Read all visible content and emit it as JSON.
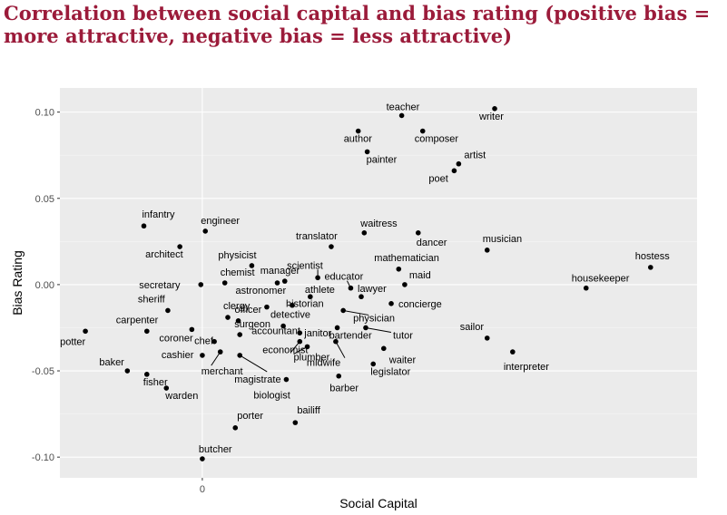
{
  "chart_data": {
    "type": "scatter",
    "title": "Correlation between social capital and bias rating (positive bias = more attractive, negative bias = less attractive)",
    "xlabel": "Social Capital",
    "ylabel": "Bias Rating",
    "x_ticks": [
      0
    ],
    "y_ticks": [
      0.1,
      0.05,
      0.0,
      -0.05,
      -0.1
    ],
    "y_tick_labels": [
      "0.10",
      "0.05",
      "0.00",
      "-0.05",
      "-0.10"
    ],
    "x_tick_labels": [
      "0"
    ],
    "xlim": [
      -0.95,
      3.3
    ],
    "ylim": [
      -0.112,
      0.114
    ],
    "grid": true,
    "points": [
      {
        "label": "teacher",
        "x": 1.33,
        "y": 0.098
      },
      {
        "label": "writer",
        "x": 1.95,
        "y": 0.102
      },
      {
        "label": "author",
        "x": 1.04,
        "y": 0.089
      },
      {
        "label": "composer",
        "x": 1.47,
        "y": 0.089
      },
      {
        "label": "painter",
        "x": 1.1,
        "y": 0.077
      },
      {
        "label": "artist",
        "x": 1.71,
        "y": 0.07
      },
      {
        "label": "poet",
        "x": 1.68,
        "y": 0.066
      },
      {
        "label": "infantry",
        "x": -0.39,
        "y": 0.034
      },
      {
        "label": "engineer",
        "x": 0.02,
        "y": 0.031
      },
      {
        "label": "architect",
        "x": -0.15,
        "y": 0.022
      },
      {
        "label": "waitress",
        "x": 1.08,
        "y": 0.03
      },
      {
        "label": "dancer",
        "x": 1.44,
        "y": 0.03
      },
      {
        "label": "translator",
        "x": 0.86,
        "y": 0.022
      },
      {
        "label": "musician",
        "x": 1.9,
        "y": 0.02
      },
      {
        "label": "hostess",
        "x": 2.99,
        "y": 0.01
      },
      {
        "label": "physicist",
        "x": 0.33,
        "y": 0.011
      },
      {
        "label": "scientist",
        "x": 0.77,
        "y": 0.004
      },
      {
        "label": "mathematician",
        "x": 1.31,
        "y": 0.009
      },
      {
        "label": "chemist",
        "x": 0.15,
        "y": 0.001
      },
      {
        "label": "manager",
        "x": 0.55,
        "y": 0.002
      },
      {
        "label": "educator",
        "x": 0.99,
        "y": -0.002
      },
      {
        "label": "maid",
        "x": 1.35,
        "y": 0.0
      },
      {
        "label": "housekeeper",
        "x": 2.56,
        "y": -0.002
      },
      {
        "label": "secretary",
        "x": -0.01,
        "y": 0.0
      },
      {
        "label": "astronomer",
        "x": 0.5,
        "y": 0.001
      },
      {
        "label": "athlete",
        "x": 0.72,
        "y": -0.007
      },
      {
        "label": "lawyer",
        "x": 1.06,
        "y": -0.007
      },
      {
        "label": "sheriff",
        "x": -0.23,
        "y": -0.015
      },
      {
        "label": "clergy",
        "x": 0.17,
        "y": -0.019
      },
      {
        "label": "officer",
        "x": 0.24,
        "y": -0.021
      },
      {
        "label": "historian",
        "x": 0.6,
        "y": -0.012
      },
      {
        "label": "concierge",
        "x": 1.26,
        "y": -0.011
      },
      {
        "label": "detective",
        "x": 0.43,
        "y": -0.013
      },
      {
        "label": "physician",
        "x": 0.94,
        "y": -0.015
      },
      {
        "label": "carpenter",
        "x": -0.37,
        "y": -0.027
      },
      {
        "label": "accountant",
        "x": 0.54,
        "y": -0.024
      },
      {
        "label": "potter",
        "x": -0.78,
        "y": -0.027
      },
      {
        "label": "coroner",
        "x": -0.07,
        "y": -0.026
      },
      {
        "label": "chef",
        "x": 0.08,
        "y": -0.033
      },
      {
        "label": "janitor",
        "x": 0.65,
        "y": -0.028
      },
      {
        "label": "bartender",
        "x": 0.9,
        "y": -0.025
      },
      {
        "label": "tutor",
        "x": 1.09,
        "y": -0.025
      },
      {
        "label": "sailor",
        "x": 1.9,
        "y": -0.031
      },
      {
        "label": "surgeon",
        "x": 0.25,
        "y": -0.029
      },
      {
        "label": "cashier",
        "x": 0.0,
        "y": -0.041
      },
      {
        "label": "economist",
        "x": 0.65,
        "y": -0.033
      },
      {
        "label": "merchant",
        "x": 0.12,
        "y": -0.039
      },
      {
        "label": "plumber",
        "x": 0.7,
        "y": -0.036
      },
      {
        "label": "waiter",
        "x": 1.21,
        "y": -0.037
      },
      {
        "label": "interpreter",
        "x": 2.07,
        "y": -0.039
      },
      {
        "label": "magistrate",
        "x": 0.25,
        "y": -0.041
      },
      {
        "label": "baker",
        "x": -0.5,
        "y": -0.05
      },
      {
        "label": "fisher",
        "x": -0.37,
        "y": -0.052
      },
      {
        "label": "midwife",
        "x": 0.89,
        "y": -0.033
      },
      {
        "label": "legislator",
        "x": 1.14,
        "y": -0.046
      },
      {
        "label": "barber",
        "x": 0.91,
        "y": -0.053
      },
      {
        "label": "biologist",
        "x": 0.56,
        "y": -0.055
      },
      {
        "label": "warden",
        "x": -0.24,
        "y": -0.06
      },
      {
        "label": "bailiff",
        "x": 0.62,
        "y": -0.08
      },
      {
        "label": "porter",
        "x": 0.22,
        "y": -0.083
      },
      {
        "label": "butcher",
        "x": 0.0,
        "y": -0.101
      }
    ]
  }
}
